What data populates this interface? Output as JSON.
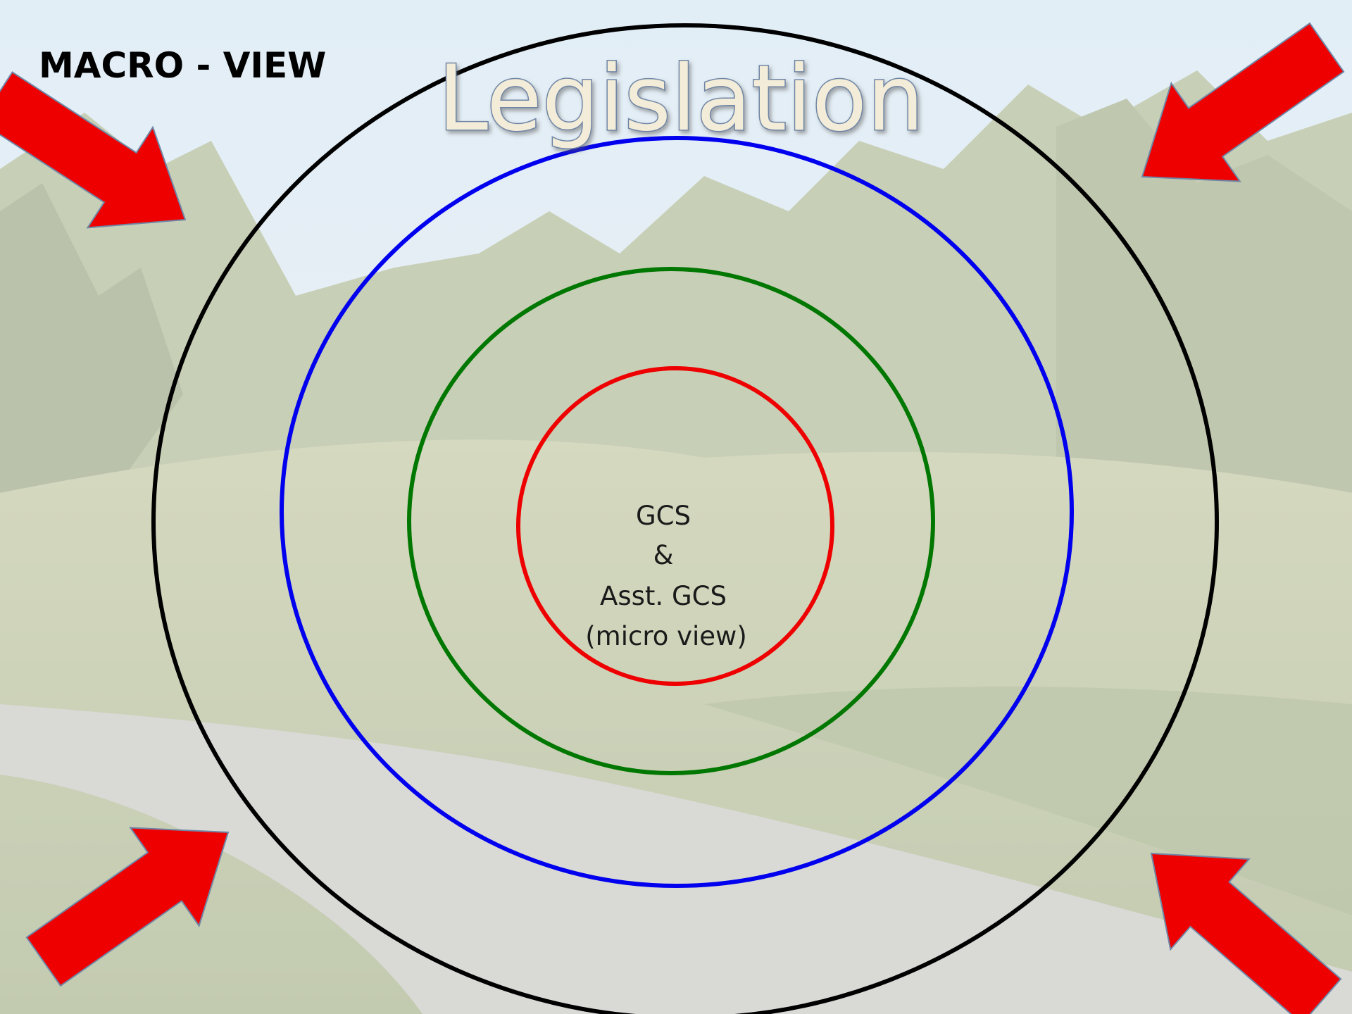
{
  "header": {
    "title": "MACRO - VIEW"
  },
  "heading": "Legislation",
  "center": {
    "lines": [
      "GCS",
      "&",
      "Asst. GCS",
      "(micro view)"
    ]
  }
}
